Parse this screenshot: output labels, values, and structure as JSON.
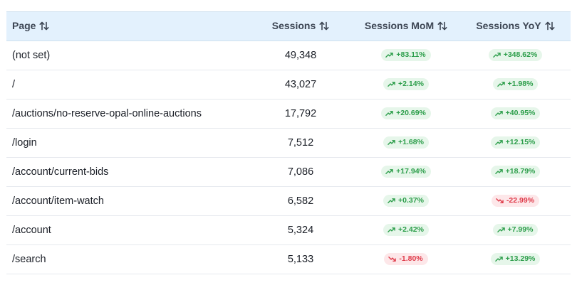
{
  "table": {
    "headers": {
      "page": "Page",
      "sessions": "Sessions",
      "mom": "Sessions MoM",
      "yoy": "Sessions YoY"
    },
    "rows": [
      {
        "page": "(not set)",
        "sessions": "49,348",
        "mom": {
          "value": "+83.11%",
          "trend": "up"
        },
        "yoy": {
          "value": "+348.62%",
          "trend": "up"
        }
      },
      {
        "page": "/",
        "sessions": "43,027",
        "mom": {
          "value": "+2.14%",
          "trend": "up"
        },
        "yoy": {
          "value": "+1.98%",
          "trend": "up"
        }
      },
      {
        "page": "/auctions/no-reserve-opal-online-auctions",
        "sessions": "17,792",
        "mom": {
          "value": "+20.69%",
          "trend": "up"
        },
        "yoy": {
          "value": "+40.95%",
          "trend": "up"
        }
      },
      {
        "page": "/login",
        "sessions": "7,512",
        "mom": {
          "value": "+1.68%",
          "trend": "up"
        },
        "yoy": {
          "value": "+12.15%",
          "trend": "up"
        }
      },
      {
        "page": "/account/current-bids",
        "sessions": "7,086",
        "mom": {
          "value": "+17.94%",
          "trend": "up"
        },
        "yoy": {
          "value": "+18.79%",
          "trend": "up"
        }
      },
      {
        "page": "/account/item-watch",
        "sessions": "6,582",
        "mom": {
          "value": "+0.37%",
          "trend": "up"
        },
        "yoy": {
          "value": "-22.99%",
          "trend": "down"
        }
      },
      {
        "page": "/account",
        "sessions": "5,324",
        "mom": {
          "value": "+2.42%",
          "trend": "up"
        },
        "yoy": {
          "value": "+7.99%",
          "trend": "up"
        }
      },
      {
        "page": "/search",
        "sessions": "5,133",
        "mom": {
          "value": "-1.80%",
          "trend": "down"
        },
        "yoy": {
          "value": "+13.29%",
          "trend": "up"
        }
      }
    ]
  },
  "colors": {
    "header_bg": "#e3f1fd",
    "up_bg": "#e6f6ea",
    "up_fg": "#2d9e4b",
    "down_bg": "#fde7e9",
    "down_fg": "#df3b4a"
  },
  "icons": {
    "sort": "sort-arrows-icon",
    "up": "trending-up-icon",
    "down": "trending-down-icon"
  }
}
